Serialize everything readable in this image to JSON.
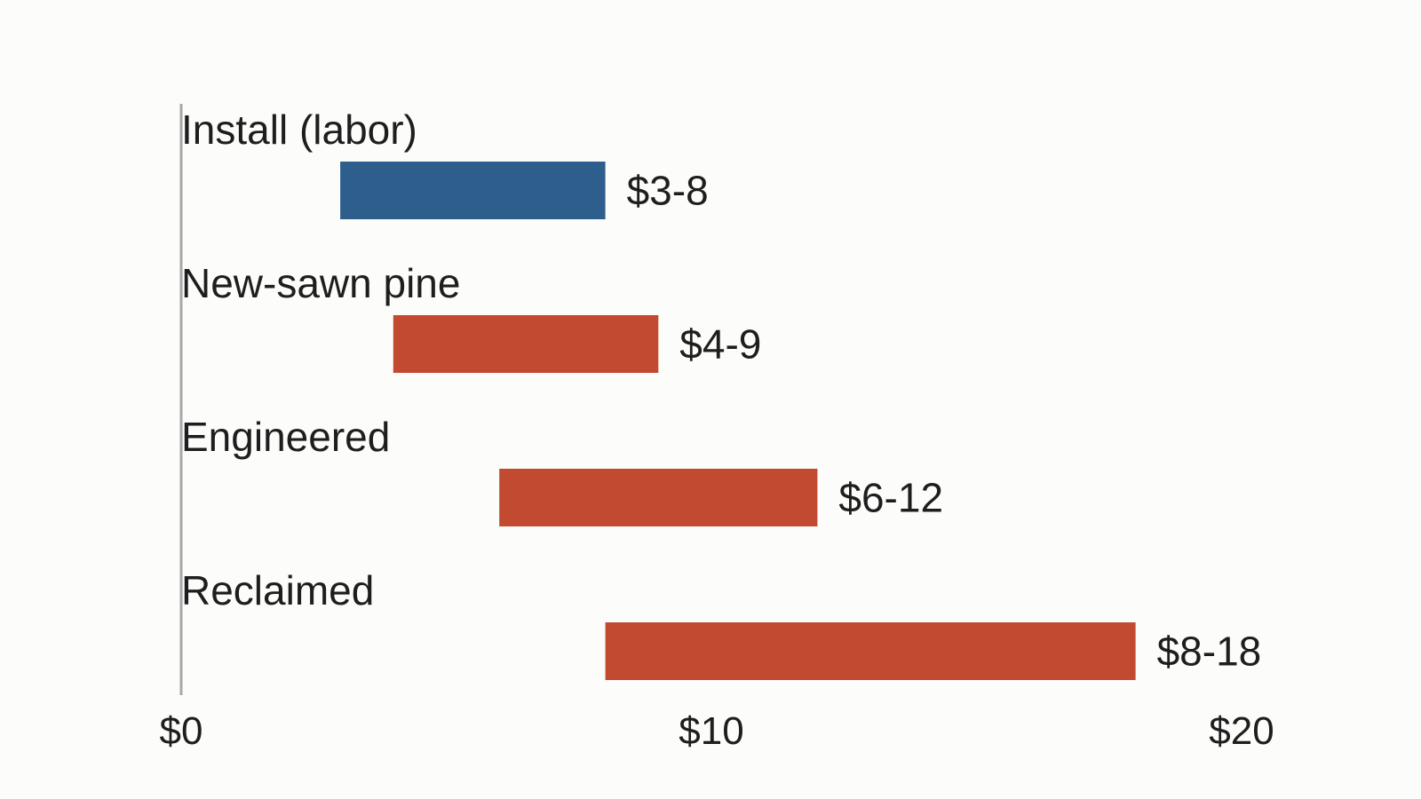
{
  "chart_data": {
    "type": "bar",
    "orientation": "horizontal-range",
    "title": "",
    "xlabel": "",
    "ylabel": "",
    "categories": [
      "Install (labor)",
      "New-sawn pine",
      "Engineered",
      "Reclaimed"
    ],
    "ranges": [
      {
        "low": 3,
        "high": 8,
        "label": "$3-8",
        "color": "#2e5e8c"
      },
      {
        "low": 4,
        "high": 9,
        "label": "$4-9",
        "color": "#c14a31"
      },
      {
        "low": 6,
        "high": 12,
        "label": "$6-12",
        "color": "#c14a31"
      },
      {
        "low": 8,
        "high": 18,
        "label": "$8-18",
        "color": "#c14a31"
      }
    ],
    "xlim": [
      0,
      20
    ],
    "x_ticks": [
      0,
      10,
      20
    ],
    "x_tick_labels": [
      "$0",
      "$10",
      "$20"
    ],
    "grid": false,
    "legend": "none"
  }
}
